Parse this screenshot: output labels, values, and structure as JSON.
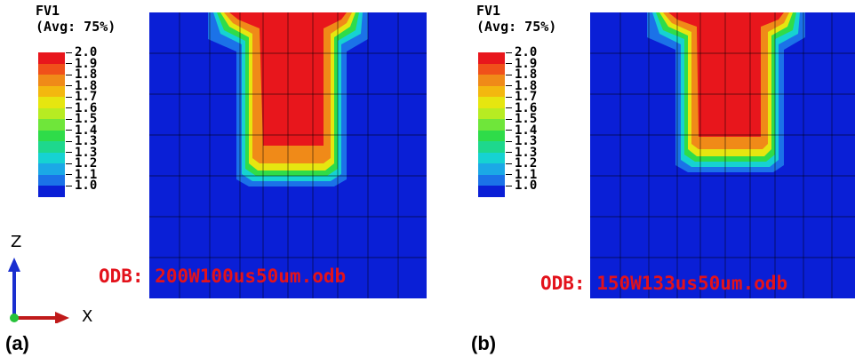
{
  "panels": [
    {
      "label": "(a)",
      "legend_title": "FV1\n(Avg: 75%)",
      "legend_values": [
        "2.0",
        "1.9",
        "1.8",
        "1.8",
        "1.7",
        "1.6",
        "1.5",
        "1.4",
        "1.3",
        "1.3",
        "1.2",
        "1.1",
        "1.0"
      ],
      "odb": "ODB: 200W100us50um.odb"
    },
    {
      "label": "(b)",
      "legend_title": "FV1\n(Avg: 75%)",
      "legend_values": [
        "2.0",
        "1.9",
        "1.8",
        "1.8",
        "1.7",
        "1.6",
        "1.5",
        "1.4",
        "1.3",
        "1.3",
        "1.2",
        "1.1",
        "1.0"
      ],
      "odb": "ODB: 150W133us50um.odb"
    }
  ],
  "legend_colors": [
    "#e8161c",
    "#f0501a",
    "#f08a18",
    "#f3b80f",
    "#e6e610",
    "#b7ec22",
    "#6fe63a",
    "#2fdc49",
    "#1ed88d",
    "#16d2d2",
    "#1ba8e6",
    "#1b72e8",
    "#0a1fd6"
  ],
  "triad": {
    "z_label": "Z",
    "x_label": "X"
  }
}
